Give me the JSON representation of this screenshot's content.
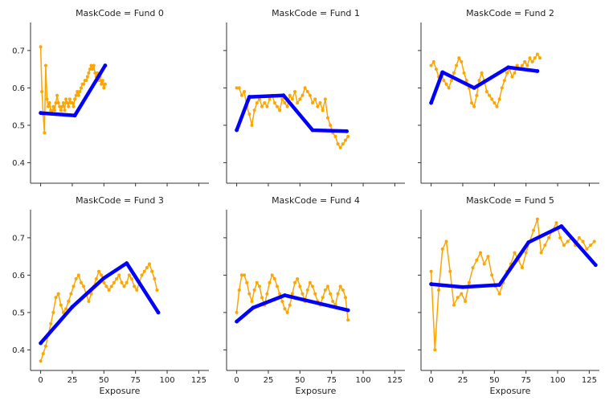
{
  "chart_data": {
    "type": "line",
    "layout": "facet-grid-2x3",
    "facet_variable": "MaskCode",
    "xlabel": "Exposure",
    "ylabel": "",
    "xlim": [
      -8,
      133
    ],
    "ylim": [
      0.345,
      0.775
    ],
    "xticks": [
      0,
      25,
      50,
      75,
      100,
      125
    ],
    "yticks": [
      0.4,
      0.5,
      0.6,
      0.7
    ],
    "series_colors": {
      "observed": "#ffa500",
      "fitted": "#0000ff"
    },
    "panels": [
      {
        "title": "MaskCode = Fund 0",
        "observed": {
          "x": [
            0,
            1,
            2,
            3,
            4,
            5,
            6,
            7,
            8,
            9,
            10,
            11,
            12,
            13,
            14,
            15,
            16,
            17,
            18,
            19,
            20,
            21,
            22,
            23,
            24,
            25,
            26,
            27,
            28,
            29,
            30,
            31,
            32,
            33,
            34,
            35,
            36,
            37,
            38,
            39,
            40,
            41,
            42,
            43,
            44,
            45,
            46,
            47,
            48,
            49,
            50,
            51
          ],
          "y": [
            0.71,
            0.59,
            0.53,
            0.48,
            0.66,
            0.57,
            0.55,
            0.56,
            0.54,
            0.53,
            0.55,
            0.54,
            0.56,
            0.58,
            0.56,
            0.55,
            0.54,
            0.55,
            0.56,
            0.54,
            0.57,
            0.56,
            0.55,
            0.57,
            0.56,
            0.56,
            0.55,
            0.57,
            0.58,
            0.59,
            0.58,
            0.59,
            0.6,
            0.61,
            0.61,
            0.62,
            0.62,
            0.63,
            0.64,
            0.65,
            0.66,
            0.65,
            0.66,
            0.64,
            0.63,
            0.64,
            0.62,
            0.63,
            0.61,
            0.62,
            0.6,
            0.61
          ]
        },
        "fitted": {
          "x": [
            0,
            27,
            51
          ],
          "y": [
            0.533,
            0.526,
            0.66
          ]
        }
      },
      {
        "title": "MaskCode = Fund 1",
        "observed": {
          "x": [
            0,
            2,
            4,
            6,
            8,
            10,
            12,
            14,
            16,
            18,
            20,
            22,
            24,
            26,
            28,
            30,
            32,
            34,
            36,
            38,
            40,
            42,
            44,
            46,
            48,
            50,
            52,
            54,
            56,
            58,
            60,
            62,
            64,
            66,
            68,
            70,
            72,
            74,
            76,
            78,
            80,
            82,
            84,
            86,
            88
          ],
          "y": [
            0.6,
            0.6,
            0.58,
            0.59,
            0.55,
            0.53,
            0.5,
            0.54,
            0.56,
            0.57,
            0.55,
            0.56,
            0.55,
            0.57,
            0.58,
            0.56,
            0.55,
            0.54,
            0.57,
            0.56,
            0.55,
            0.58,
            0.57,
            0.59,
            0.56,
            0.57,
            0.58,
            0.6,
            0.59,
            0.58,
            0.56,
            0.57,
            0.55,
            0.56,
            0.54,
            0.57,
            0.52,
            0.5,
            0.48,
            0.47,
            0.45,
            0.44,
            0.45,
            0.46,
            0.47
          ]
        },
        "fitted": {
          "x": [
            0,
            10,
            37,
            60,
            87
          ],
          "y": [
            0.487,
            0.576,
            0.58,
            0.487,
            0.484
          ]
        }
      },
      {
        "title": "MaskCode = Fund 2",
        "observed": {
          "x": [
            0,
            2,
            4,
            6,
            8,
            10,
            12,
            14,
            16,
            18,
            20,
            22,
            24,
            26,
            28,
            30,
            32,
            34,
            36,
            38,
            40,
            42,
            44,
            46,
            48,
            50,
            52,
            54,
            56,
            58,
            60,
            62,
            64,
            66,
            68,
            70,
            72,
            74,
            76,
            78,
            80,
            82,
            84,
            86
          ],
          "y": [
            0.66,
            0.67,
            0.65,
            0.63,
            0.64,
            0.62,
            0.61,
            0.6,
            0.62,
            0.64,
            0.66,
            0.68,
            0.67,
            0.64,
            0.62,
            0.6,
            0.56,
            0.55,
            0.58,
            0.62,
            0.64,
            0.62,
            0.59,
            0.58,
            0.57,
            0.56,
            0.55,
            0.57,
            0.6,
            0.62,
            0.64,
            0.65,
            0.63,
            0.64,
            0.66,
            0.65,
            0.66,
            0.67,
            0.66,
            0.68,
            0.67,
            0.68,
            0.69,
            0.68
          ]
        },
        "fitted": {
          "x": [
            0,
            9,
            34,
            61,
            84
          ],
          "y": [
            0.56,
            0.642,
            0.6,
            0.655,
            0.645
          ]
        }
      },
      {
        "title": "MaskCode = Fund 3",
        "observed": {
          "x": [
            0,
            2,
            4,
            6,
            8,
            10,
            12,
            14,
            16,
            18,
            20,
            22,
            24,
            26,
            28,
            30,
            32,
            34,
            36,
            38,
            40,
            42,
            44,
            46,
            48,
            50,
            52,
            54,
            56,
            58,
            60,
            62,
            64,
            66,
            68,
            70,
            72,
            74,
            76,
            78,
            80,
            82,
            84,
            86,
            88,
            90,
            92
          ],
          "y": [
            0.37,
            0.39,
            0.41,
            0.44,
            0.47,
            0.5,
            0.54,
            0.55,
            0.52,
            0.5,
            0.51,
            0.53,
            0.55,
            0.57,
            0.59,
            0.6,
            0.58,
            0.57,
            0.55,
            0.53,
            0.55,
            0.57,
            0.59,
            0.61,
            0.6,
            0.58,
            0.57,
            0.56,
            0.57,
            0.58,
            0.59,
            0.6,
            0.58,
            0.57,
            0.58,
            0.6,
            0.59,
            0.57,
            0.56,
            0.58,
            0.6,
            0.61,
            0.62,
            0.63,
            0.61,
            0.59,
            0.56
          ]
        },
        "fitted": {
          "x": [
            0,
            25,
            50,
            68,
            93
          ],
          "y": [
            0.418,
            0.515,
            0.592,
            0.632,
            0.5
          ]
        }
      },
      {
        "title": "MaskCode = Fund 4",
        "observed": {
          "x": [
            0,
            2,
            4,
            6,
            8,
            10,
            12,
            14,
            16,
            18,
            20,
            22,
            24,
            26,
            28,
            30,
            32,
            34,
            36,
            38,
            40,
            42,
            44,
            46,
            48,
            50,
            52,
            54,
            56,
            58,
            60,
            62,
            64,
            66,
            68,
            70,
            72,
            74,
            76,
            78,
            80,
            82,
            84,
            86,
            88
          ],
          "y": [
            0.5,
            0.56,
            0.6,
            0.6,
            0.58,
            0.55,
            0.53,
            0.56,
            0.58,
            0.57,
            0.54,
            0.52,
            0.55,
            0.58,
            0.6,
            0.59,
            0.57,
            0.55,
            0.53,
            0.51,
            0.5,
            0.52,
            0.55,
            0.58,
            0.59,
            0.57,
            0.55,
            0.53,
            0.56,
            0.58,
            0.57,
            0.55,
            0.53,
            0.52,
            0.54,
            0.56,
            0.57,
            0.55,
            0.53,
            0.52,
            0.55,
            0.57,
            0.56,
            0.54,
            0.48
          ]
        },
        "fitted": {
          "x": [
            0,
            13,
            38,
            88
          ],
          "y": [
            0.476,
            0.513,
            0.546,
            0.506
          ]
        }
      },
      {
        "title": "MaskCode = Fund 5",
        "observed": {
          "x": [
            0,
            3,
            6,
            9,
            12,
            15,
            18,
            21,
            24,
            27,
            30,
            33,
            36,
            39,
            42,
            45,
            48,
            51,
            54,
            57,
            60,
            63,
            66,
            69,
            72,
            75,
            78,
            81,
            84,
            87,
            90,
            93,
            96,
            99,
            102,
            105,
            108,
            111,
            114,
            117,
            120,
            123,
            126,
            129
          ],
          "y": [
            0.61,
            0.4,
            0.56,
            0.67,
            0.69,
            0.61,
            0.52,
            0.54,
            0.55,
            0.53,
            0.58,
            0.62,
            0.64,
            0.66,
            0.63,
            0.65,
            0.6,
            0.57,
            0.55,
            0.58,
            0.61,
            0.63,
            0.66,
            0.64,
            0.62,
            0.66,
            0.69,
            0.72,
            0.75,
            0.66,
            0.68,
            0.7,
            0.72,
            0.74,
            0.7,
            0.68,
            0.69,
            0.7,
            0.68,
            0.7,
            0.69,
            0.67,
            0.68,
            0.69
          ]
        },
        "fitted": {
          "x": [
            0,
            25,
            54,
            77,
            103,
            130
          ],
          "y": [
            0.576,
            0.568,
            0.574,
            0.688,
            0.731,
            0.627
          ]
        }
      }
    ]
  }
}
